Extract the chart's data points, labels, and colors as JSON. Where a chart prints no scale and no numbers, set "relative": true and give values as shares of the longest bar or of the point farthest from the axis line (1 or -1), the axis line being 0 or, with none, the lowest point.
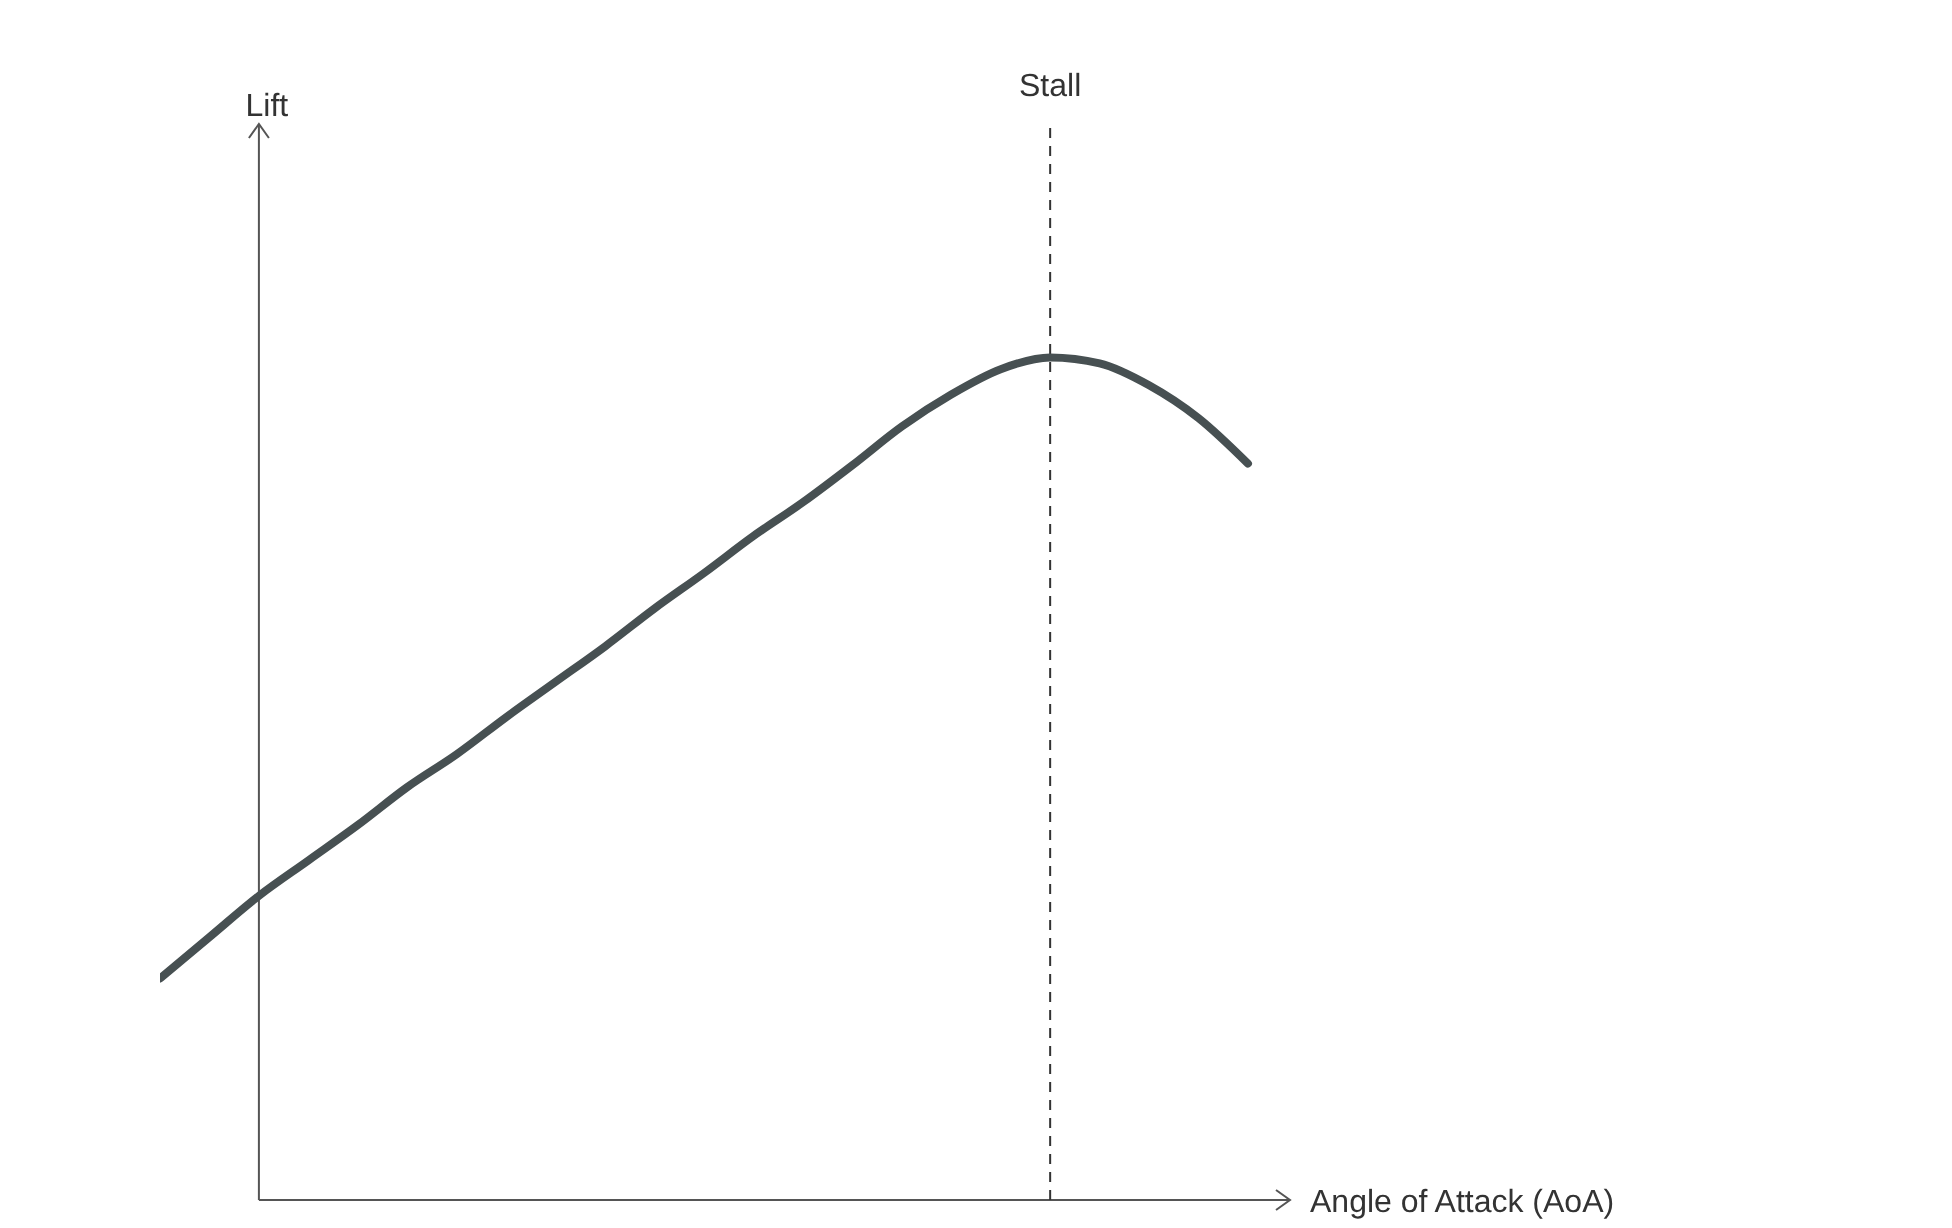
{
  "chart_data": {
    "type": "line",
    "xlabel": "Angle of Attack (AoA)",
    "relative": true,
    "categories": [
      null,
      null,
      null,
      null,
      null,
      null,
      null,
      null,
      null,
      null,
      null,
      null,
      null,
      null,
      null,
      null,
      null,
      null,
      null,
      null,
      null,
      null,
      null
    ],
    "series": [
      {
        "color": "#475052",
        "values": [
          0.263,
          0.312,
          0.361,
          0.403,
          0.445,
          0.49,
          0.529,
          0.573,
          0.615,
          0.657,
          0.702,
          0.744,
          0.788,
          0.828,
          0.872,
          0.918,
          0.956,
          0.986,
          1,
          0.993,
          0.967,
          0.928,
          0.874
        ]
      }
    ],
    "annotations": [
      "Stall",
      "Lift"
    ],
    "grid": false,
    "legend": false,
    "marker": "none",
    "line_style": "solid"
  }
}
